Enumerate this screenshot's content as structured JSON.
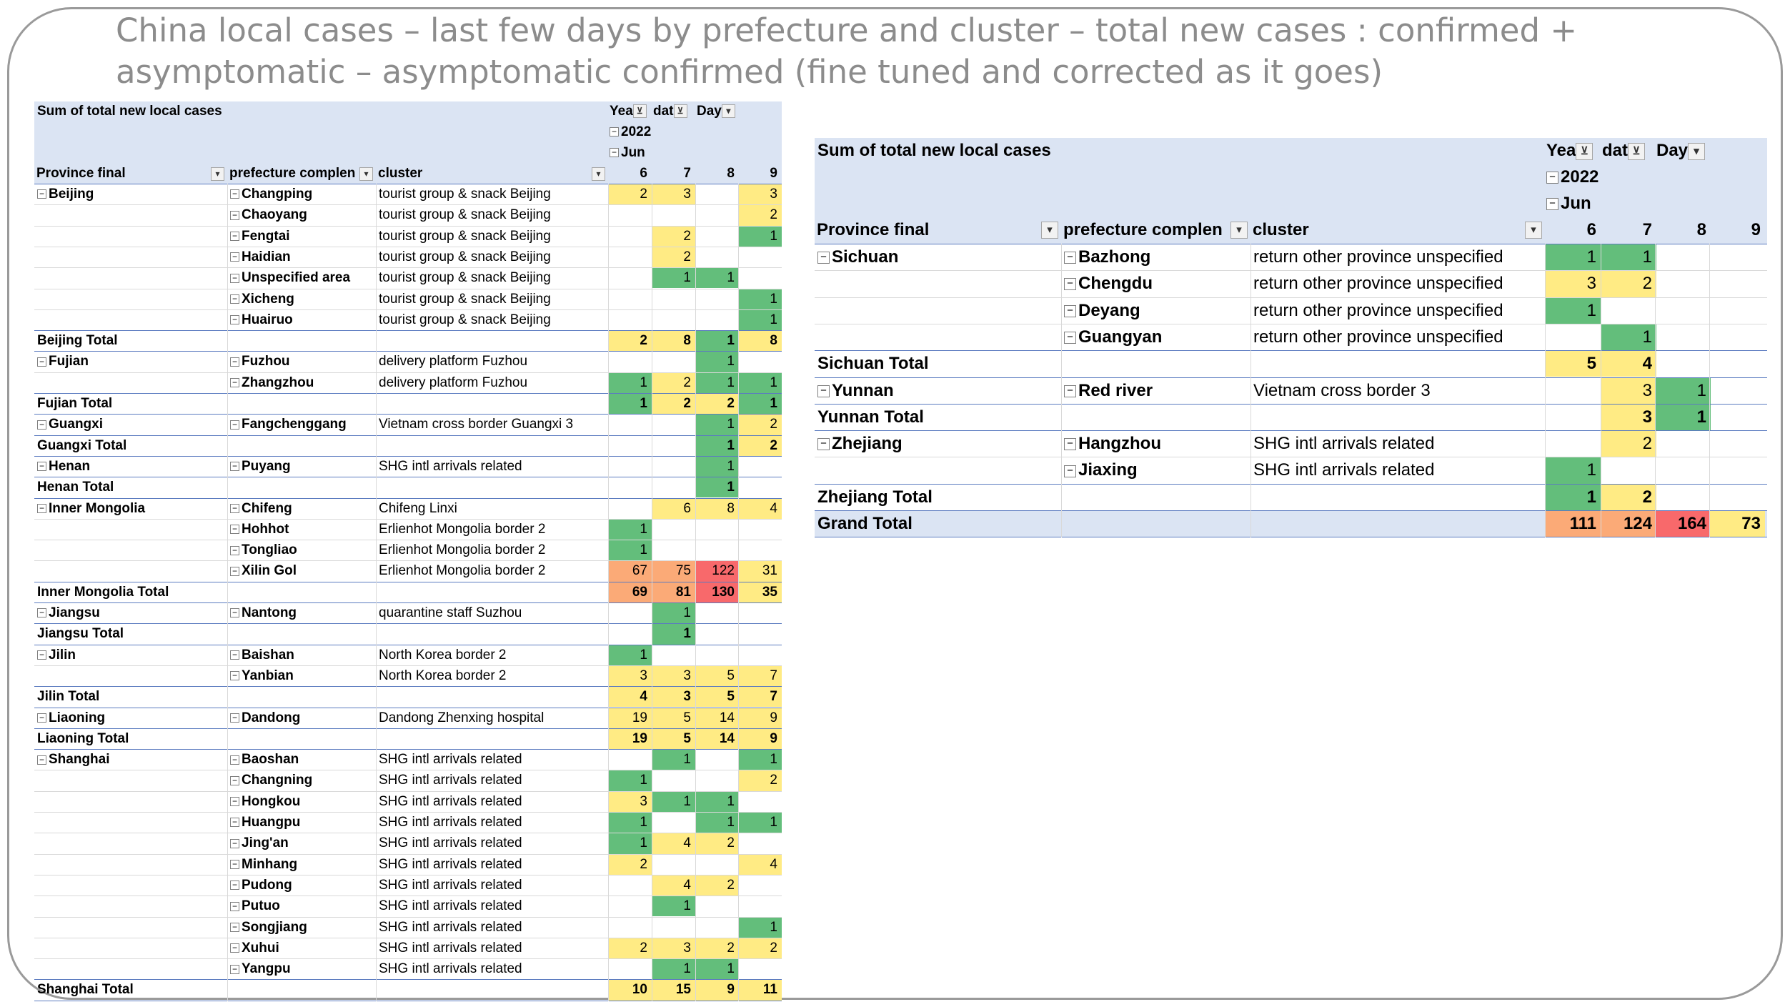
{
  "title": {
    "line1": "China local cases – last few days by prefecture and cluster – total new cases : confirmed +",
    "line2": "asymptomatic – asymptomatic confirmed (fine tuned and corrected as it goes)"
  },
  "colors": {
    "header_bg": "#dbe4f3",
    "green": "#63be7b",
    "yellow": "#ffeb84",
    "orange": "#fbaa77",
    "red": "#f8696b",
    "grid": "#8ea9db"
  },
  "left_pivot": {
    "header": {
      "title": "Sum of total new local cases",
      "filter_year": "Yea",
      "filter_date": "dat",
      "filter_day": "Day",
      "year": "2022",
      "month": "Jun",
      "col_province": "Province final",
      "col_prefecture": "prefecture complen",
      "col_cluster": "cluster",
      "days": [
        "6",
        "7",
        "8",
        "9"
      ]
    },
    "rows": [
      {
        "t": "d",
        "p": "Beijing",
        "f": "Changping",
        "c": "tourist group & snack Beijing",
        "v": [
          "2",
          "3",
          "",
          "3"
        ],
        "col": [
          "y",
          "y",
          "",
          "y"
        ]
      },
      {
        "t": "d",
        "p": "",
        "f": "Chaoyang",
        "c": "tourist group & snack Beijing",
        "v": [
          "",
          "",
          "",
          "2"
        ],
        "col": [
          "",
          "",
          "",
          "y"
        ]
      },
      {
        "t": "d",
        "p": "",
        "f": "Fengtai",
        "c": "tourist group & snack Beijing",
        "v": [
          "",
          "2",
          "",
          "1"
        ],
        "col": [
          "",
          "y",
          "",
          "g"
        ]
      },
      {
        "t": "d",
        "p": "",
        "f": "Haidian",
        "c": "tourist group & snack Beijing",
        "v": [
          "",
          "2",
          "",
          ""
        ],
        "col": [
          "",
          "y",
          "",
          ""
        ]
      },
      {
        "t": "d",
        "p": "",
        "f": "Unspecified area",
        "c": "tourist group & snack Beijing",
        "v": [
          "",
          "1",
          "1",
          ""
        ],
        "col": [
          "",
          "g",
          "g",
          ""
        ]
      },
      {
        "t": "d",
        "p": "",
        "f": "Xicheng",
        "c": "tourist group & snack Beijing",
        "v": [
          "",
          "",
          "",
          "1"
        ],
        "col": [
          "",
          "",
          "",
          "g"
        ]
      },
      {
        "t": "d",
        "p": "",
        "f": "Huairuo",
        "c": "tourist group & snack Beijing",
        "v": [
          "",
          "",
          "",
          "1"
        ],
        "col": [
          "",
          "",
          "",
          "g"
        ]
      },
      {
        "t": "t",
        "p": "Beijing Total",
        "v": [
          "2",
          "8",
          "1",
          "8"
        ],
        "col": [
          "y",
          "y",
          "g",
          "y"
        ]
      },
      {
        "t": "d",
        "p": "Fujian",
        "f": "Fuzhou",
        "c": "delivery platform Fuzhou",
        "v": [
          "",
          "",
          "1",
          ""
        ],
        "col": [
          "",
          "",
          "g",
          ""
        ]
      },
      {
        "t": "d",
        "p": "",
        "f": "Zhangzhou",
        "c": "delivery platform Fuzhou",
        "v": [
          "1",
          "2",
          "1",
          "1"
        ],
        "col": [
          "g",
          "y",
          "g",
          "g"
        ]
      },
      {
        "t": "t",
        "p": "Fujian Total",
        "v": [
          "1",
          "2",
          "2",
          "1"
        ],
        "col": [
          "g",
          "y",
          "y",
          "g"
        ]
      },
      {
        "t": "d",
        "p": "Guangxi",
        "f": "Fangchenggang",
        "c": "Vietnam cross border Guangxi 3",
        "v": [
          "",
          "",
          "1",
          "2"
        ],
        "col": [
          "",
          "",
          "g",
          "y"
        ]
      },
      {
        "t": "t",
        "p": "Guangxi Total",
        "v": [
          "",
          "",
          "1",
          "2"
        ],
        "col": [
          "",
          "",
          "g",
          "y"
        ]
      },
      {
        "t": "d",
        "p": "Henan",
        "f": "Puyang",
        "c": "SHG intl arrivals related",
        "v": [
          "",
          "",
          "1",
          ""
        ],
        "col": [
          "",
          "",
          "g",
          ""
        ]
      },
      {
        "t": "t",
        "p": "Henan Total",
        "v": [
          "",
          "",
          "1",
          ""
        ],
        "col": [
          "",
          "",
          "g",
          ""
        ]
      },
      {
        "t": "d",
        "p": "Inner Mongolia",
        "f": "Chifeng",
        "c": "Chifeng Linxi",
        "v": [
          "",
          "6",
          "8",
          "4"
        ],
        "col": [
          "",
          "y",
          "y",
          "y"
        ]
      },
      {
        "t": "d",
        "p": "",
        "f": "Hohhot",
        "c": "Erlienhot Mongolia border 2",
        "v": [
          "1",
          "",
          "",
          ""
        ],
        "col": [
          "g",
          "",
          "",
          ""
        ]
      },
      {
        "t": "d",
        "p": "",
        "f": "Tongliao",
        "c": "Erlienhot Mongolia border 2",
        "v": [
          "1",
          "",
          "",
          ""
        ],
        "col": [
          "g",
          "",
          "",
          ""
        ]
      },
      {
        "t": "d",
        "p": "",
        "f": "Xilin Gol",
        "c": "Erlienhot Mongolia border 2",
        "v": [
          "67",
          "75",
          "122",
          "31"
        ],
        "col": [
          "o",
          "o",
          "r",
          "y"
        ]
      },
      {
        "t": "t",
        "p": "Inner Mongolia Total",
        "v": [
          "69",
          "81",
          "130",
          "35"
        ],
        "col": [
          "o",
          "o",
          "r",
          "y"
        ]
      },
      {
        "t": "d",
        "p": "Jiangsu",
        "f": "Nantong",
        "c": "quarantine staff Suzhou",
        "v": [
          "",
          "1",
          "",
          ""
        ],
        "col": [
          "",
          "g",
          "",
          ""
        ]
      },
      {
        "t": "t",
        "p": "Jiangsu Total",
        "v": [
          "",
          "1",
          "",
          ""
        ],
        "col": [
          "",
          "g",
          "",
          ""
        ]
      },
      {
        "t": "d",
        "p": "Jilin",
        "f": "Baishan",
        "c": "North Korea border 2",
        "v": [
          "1",
          "",
          "",
          ""
        ],
        "col": [
          "g",
          "",
          "",
          ""
        ]
      },
      {
        "t": "d",
        "p": "",
        "f": "Yanbian",
        "c": "North Korea border 2",
        "v": [
          "3",
          "3",
          "5",
          "7"
        ],
        "col": [
          "y",
          "y",
          "y",
          "y"
        ]
      },
      {
        "t": "t",
        "p": "Jilin Total",
        "v": [
          "4",
          "3",
          "5",
          "7"
        ],
        "col": [
          "y",
          "y",
          "y",
          "y"
        ]
      },
      {
        "t": "d",
        "p": "Liaoning",
        "f": "Dandong",
        "c": "Dandong Zhenxing hospital",
        "v": [
          "19",
          "5",
          "14",
          "9"
        ],
        "col": [
          "y",
          "y",
          "y",
          "y"
        ]
      },
      {
        "t": "t",
        "p": "Liaoning Total",
        "v": [
          "19",
          "5",
          "14",
          "9"
        ],
        "col": [
          "y",
          "y",
          "y",
          "y"
        ]
      },
      {
        "t": "d",
        "p": "Shanghai",
        "f": "Baoshan",
        "c": "SHG intl arrivals related",
        "v": [
          "",
          "1",
          "",
          "1"
        ],
        "col": [
          "",
          "g",
          "",
          "g"
        ]
      },
      {
        "t": "d",
        "p": "",
        "f": "Changning",
        "c": "SHG intl arrivals related",
        "v": [
          "1",
          "",
          "",
          "2"
        ],
        "col": [
          "g",
          "",
          "",
          "y"
        ]
      },
      {
        "t": "d",
        "p": "",
        "f": "Hongkou",
        "c": "SHG intl arrivals related",
        "v": [
          "3",
          "1",
          "1",
          ""
        ],
        "col": [
          "y",
          "g",
          "g",
          ""
        ]
      },
      {
        "t": "d",
        "p": "",
        "f": "Huangpu",
        "c": "SHG intl arrivals related",
        "v": [
          "1",
          "",
          "1",
          "1"
        ],
        "col": [
          "g",
          "",
          "g",
          "g"
        ]
      },
      {
        "t": "d",
        "p": "",
        "f": "Jing'an",
        "c": "SHG intl arrivals related",
        "v": [
          "1",
          "4",
          "2",
          ""
        ],
        "col": [
          "g",
          "y",
          "y",
          ""
        ]
      },
      {
        "t": "d",
        "p": "",
        "f": "Minhang",
        "c": "SHG intl arrivals related",
        "v": [
          "2",
          "",
          "",
          "4"
        ],
        "col": [
          "y",
          "",
          "",
          "y"
        ]
      },
      {
        "t": "d",
        "p": "",
        "f": "Pudong",
        "c": "SHG intl arrivals related",
        "v": [
          "",
          "4",
          "2",
          ""
        ],
        "col": [
          "",
          "y",
          "y",
          ""
        ]
      },
      {
        "t": "d",
        "p": "",
        "f": "Putuo",
        "c": "SHG intl arrivals related",
        "v": [
          "",
          "1",
          "",
          ""
        ],
        "col": [
          "",
          "g",
          "",
          ""
        ]
      },
      {
        "t": "d",
        "p": "",
        "f": "Songjiang",
        "c": "SHG intl arrivals related",
        "v": [
          "",
          "",
          "",
          "1"
        ],
        "col": [
          "",
          "",
          "",
          "g"
        ]
      },
      {
        "t": "d",
        "p": "",
        "f": "Xuhui",
        "c": "SHG intl arrivals related",
        "v": [
          "2",
          "3",
          "2",
          "2"
        ],
        "col": [
          "y",
          "y",
          "y",
          "y"
        ]
      },
      {
        "t": "d",
        "p": "",
        "f": "Yangpu",
        "c": "SHG intl arrivals related",
        "v": [
          "",
          "1",
          "1",
          ""
        ],
        "col": [
          "",
          "g",
          "g",
          ""
        ]
      },
      {
        "t": "t",
        "p": "Shanghai Total",
        "v": [
          "10",
          "15",
          "9",
          "11"
        ],
        "col": [
          "y",
          "y",
          "y",
          "y"
        ]
      }
    ]
  },
  "right_pivot": {
    "header": {
      "title": "Sum of total new local cases",
      "filter_year": "Yea",
      "filter_date": "dat",
      "filter_day": "Day",
      "year": "2022",
      "month": "Jun",
      "col_province": "Province final",
      "col_prefecture": "prefecture complen",
      "col_cluster": "cluster",
      "days": [
        "6",
        "7",
        "8",
        "9"
      ]
    },
    "rows": [
      {
        "t": "d",
        "p": "Sichuan",
        "f": "Bazhong",
        "c": "return other province unspecified",
        "v": [
          "1",
          "1",
          "",
          ""
        ],
        "col": [
          "g",
          "g",
          "",
          ""
        ]
      },
      {
        "t": "d",
        "p": "",
        "f": "Chengdu",
        "c": "return other province unspecified",
        "v": [
          "3",
          "2",
          "",
          ""
        ],
        "col": [
          "y",
          "y",
          "",
          ""
        ]
      },
      {
        "t": "d",
        "p": "",
        "f": "Deyang",
        "c": "return other province unspecified",
        "v": [
          "1",
          "",
          "",
          ""
        ],
        "col": [
          "g",
          "",
          "",
          ""
        ]
      },
      {
        "t": "d",
        "p": "",
        "f": "Guangyan",
        "c": "return other province unspecified",
        "v": [
          "",
          "1",
          "",
          ""
        ],
        "col": [
          "",
          "g",
          "",
          ""
        ]
      },
      {
        "t": "t",
        "p": "Sichuan Total",
        "v": [
          "5",
          "4",
          "",
          ""
        ],
        "col": [
          "y",
          "y",
          "",
          ""
        ]
      },
      {
        "t": "d",
        "p": "Yunnan",
        "f": "Red river",
        "c": "Vietnam cross border 3",
        "v": [
          "",
          "3",
          "1",
          ""
        ],
        "col": [
          "",
          "y",
          "g",
          ""
        ]
      },
      {
        "t": "t",
        "p": "Yunnan Total",
        "v": [
          "",
          "3",
          "1",
          ""
        ],
        "col": [
          "",
          "y",
          "g",
          ""
        ]
      },
      {
        "t": "d",
        "p": "Zhejiang",
        "f": "Hangzhou",
        "c": "SHG intl arrivals related",
        "v": [
          "",
          "2",
          "",
          ""
        ],
        "col": [
          "",
          "y",
          "",
          ""
        ]
      },
      {
        "t": "d",
        "p": "",
        "f": "Jiaxing",
        "c": "SHG intl arrivals related",
        "v": [
          "1",
          "",
          "",
          ""
        ],
        "col": [
          "g",
          "",
          "",
          ""
        ]
      },
      {
        "t": "t",
        "p": "Zhejiang Total",
        "v": [
          "1",
          "2",
          "",
          ""
        ],
        "col": [
          "g",
          "y",
          "",
          ""
        ]
      },
      {
        "t": "g",
        "p": "Grand Total",
        "v": [
          "111",
          "124",
          "164",
          "73"
        ],
        "col": [
          "o",
          "o",
          "r",
          "y"
        ]
      }
    ]
  }
}
